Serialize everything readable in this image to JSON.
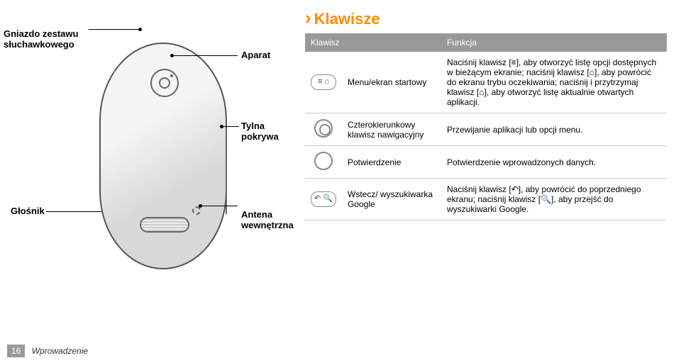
{
  "leftLabels": {
    "headphone": "Gniazdo zestawu\nsłuchawkowego",
    "speaker": "Głośnik",
    "camera": "Aparat",
    "cover": "Tylna pokrywa",
    "antenna": "Antena\nwewnętrzna"
  },
  "section": {
    "title": "Klawisze"
  },
  "table": {
    "head": {
      "key": "Klawisz",
      "func": "Funkcja"
    },
    "rows": [
      {
        "iconType": "rect",
        "iconGlyph": "≡ ⌂",
        "name": "Menu/ekran startowy",
        "func": "Naciśnij klawisz [≡], aby otworzyć listę opcji dostępnych w bieżącym ekranie; naciśnij klawisz [⌂], aby powrócić do ekranu trybu oczekiwania; naciśnij i przytrzymaj klawisz [⌂], aby otworzyć listę aktualnie otwartych aplikacji."
      },
      {
        "iconType": "ring",
        "name": "Czterokierunkowy klawisz nawigacyjny",
        "func": "Przewijanie aplikacji lub opcji menu."
      },
      {
        "iconType": "circle",
        "name": "Potwierdzenie",
        "func": "Potwierdzenie wprowadzonych danych."
      },
      {
        "iconType": "rect",
        "iconGlyph": "↶ 🔍",
        "name": "Wstecz/ wyszukiwarka Google",
        "func": "Naciśnij klawisz [↶], aby powrócić do poprzedniego ekranu; naciśnij klawisz [🔍], aby przejść do wyszukiwarki Google."
      }
    ]
  },
  "footer": {
    "page": "16",
    "chapter": "Wprowadzenie"
  },
  "colors": {
    "accent": "#ff8c00",
    "headerBg": "#999999",
    "border": "#666666"
  }
}
